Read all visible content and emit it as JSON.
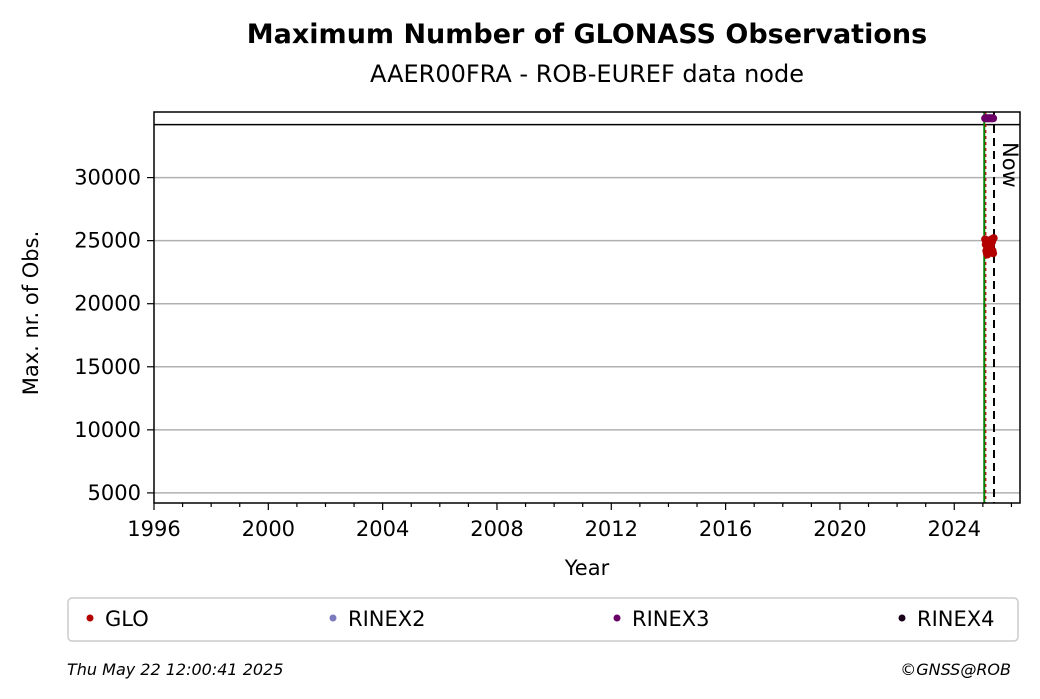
{
  "chart_data": {
    "type": "scatter",
    "title": "Maximum Number of GLONASS Observations",
    "subtitle": "AAER00FRA - ROB-EUREF data node",
    "xlabel": "Year",
    "ylabel": "Max. nr. of Obs.",
    "xlim": [
      1996,
      2026.3
    ],
    "ylim": [
      4200,
      35200
    ],
    "x_ticks": [
      1996,
      2000,
      2004,
      2008,
      2012,
      2016,
      2020,
      2024
    ],
    "y_ticks": [
      5000,
      10000,
      15000,
      20000,
      25000,
      30000
    ],
    "grid": "y",
    "legend_position": "bottom",
    "series": [
      {
        "name": "GLO",
        "color": "#b30000",
        "points": [
          [
            2025.08,
            25100
          ],
          [
            2025.1,
            24700
          ],
          [
            2025.12,
            24200
          ],
          [
            2025.14,
            24000
          ],
          [
            2025.16,
            23900
          ],
          [
            2025.18,
            24400
          ],
          [
            2025.2,
            25000
          ],
          [
            2025.22,
            24800
          ],
          [
            2025.24,
            24300
          ],
          [
            2025.26,
            24100
          ],
          [
            2025.28,
            24600
          ],
          [
            2025.3,
            25100
          ],
          [
            2025.32,
            24900
          ],
          [
            2025.34,
            24200
          ],
          [
            2025.36,
            24000
          ],
          [
            2025.38,
            25200
          ]
        ]
      },
      {
        "name": "RINEX2",
        "color": "#7b7bbd",
        "points": []
      },
      {
        "name": "RINEX3",
        "color": "#6a0066",
        "points": [
          [
            2025.08,
            34700
          ],
          [
            2025.12,
            34700
          ],
          [
            2025.16,
            34700
          ],
          [
            2025.2,
            34700
          ],
          [
            2025.24,
            34700
          ],
          [
            2025.28,
            34700
          ],
          [
            2025.32,
            34700
          ],
          [
            2025.36,
            34700
          ]
        ]
      },
      {
        "name": "RINEX4",
        "color": "#1a0018",
        "points": []
      }
    ],
    "reference_lines": {
      "upper_horizontal_y": 34200,
      "start_line_x": 2025.05,
      "start_line_color": "#008000",
      "now_line_x": 2025.39,
      "now_label": "Now"
    },
    "timestamp": "Thu May 22 12:00:41 2025",
    "copyright": "©GNSS@ROB"
  }
}
